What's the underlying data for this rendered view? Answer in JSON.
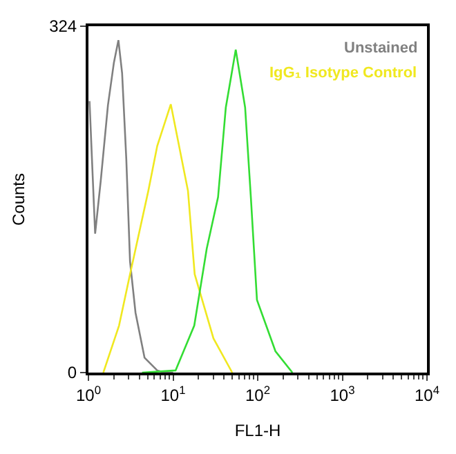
{
  "chart_data": {
    "type": "line",
    "xlabel": "FL1-H",
    "ylabel": "Counts",
    "log": "x",
    "xlim": [
      1,
      10000
    ],
    "ylim": [
      0,
      324
    ],
    "xticks": [
      {
        "value": 1,
        "label": "10$^{0}$"
      },
      {
        "value": 10,
        "label": "10$^{1}$"
      },
      {
        "value": 100,
        "label": "10$^{2}$"
      },
      {
        "value": 1000,
        "label": "10$^{3}$"
      },
      {
        "value": 10000,
        "label": "10$^{4}$"
      }
    ],
    "yticks": [
      0,
      324
    ],
    "legend": "top right",
    "series": [
      {
        "name": "Unstained",
        "color": "#808080",
        "x": [
          1.03,
          1.1,
          1.2,
          1.4,
          1.7,
          2.0,
          2.26,
          2.5,
          2.8,
          3.1,
          3.6,
          4.6,
          6.5,
          8,
          10
        ],
        "values": [
          254,
          200,
          130,
          180,
          250,
          290,
          311,
          280,
          200,
          104,
          56,
          14,
          2,
          0,
          0
        ]
      },
      {
        "name": "IgG₁ Isotype Control",
        "color": "#f0e820",
        "x": [
          1.5,
          2.3,
          3.1,
          5.1,
          6.5,
          9.4,
          15,
          18,
          30,
          50
        ],
        "values": [
          0,
          44,
          92,
          170,
          212,
          251,
          170,
          92,
          32,
          0
        ]
      },
      {
        "color": "#33dd33",
        "x": [
          4.3,
          10.7,
          17.8,
          25,
          34,
          42,
          55,
          71,
          83,
          98,
          162,
          257
        ],
        "values": [
          0,
          2,
          44,
          116,
          164,
          248,
          302,
          248,
          164,
          68,
          20,
          0
        ]
      }
    ]
  }
}
